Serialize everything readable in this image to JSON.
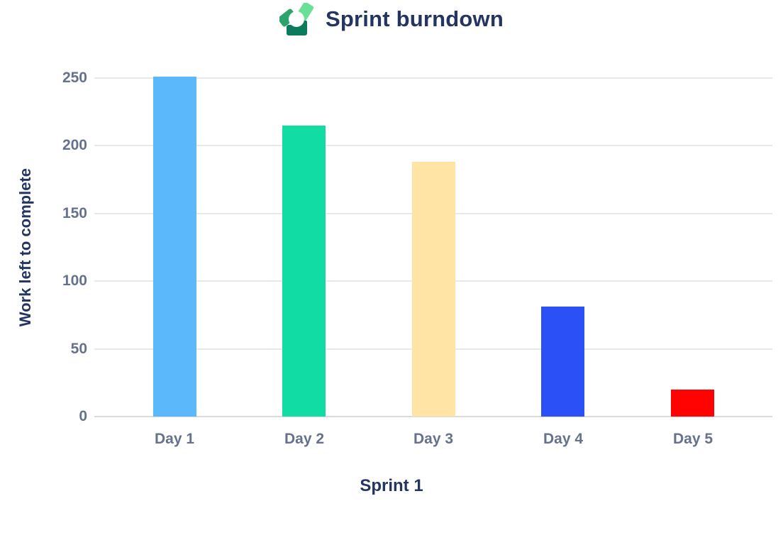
{
  "header": {
    "title": "Sprint burndown",
    "logo_icon": "geckoboard-logo",
    "logo_colors": {
      "left": "#2BA46B",
      "top_right": "#69E095",
      "bottom": "#0A7C5B"
    }
  },
  "chart_data": {
    "type": "bar",
    "title": "Sprint burndown",
    "categories": [
      "Day 1",
      "Day 2",
      "Day 3",
      "Day 4",
      "Day 5"
    ],
    "values": [
      251,
      215,
      188,
      81,
      20
    ],
    "bar_colors": [
      "#5BB8FB",
      "#10DCA3",
      "#FFE4A6",
      "#2B50F6",
      "#FF0202"
    ],
    "xlabel": "Sprint 1",
    "ylabel": "Work left to complete",
    "ylim": [
      0,
      250
    ],
    "yticks": [
      0,
      50,
      100,
      150,
      200,
      250
    ],
    "ytick_labels": [
      "0",
      "50",
      "100",
      "150",
      "200",
      "250"
    ],
    "grid": "horizontal",
    "legend": "none",
    "colors": {
      "title_text": "#243561",
      "axis_text": "#66718C",
      "gridline": "#E8E9EB",
      "baseline": "#D8DADD"
    }
  }
}
